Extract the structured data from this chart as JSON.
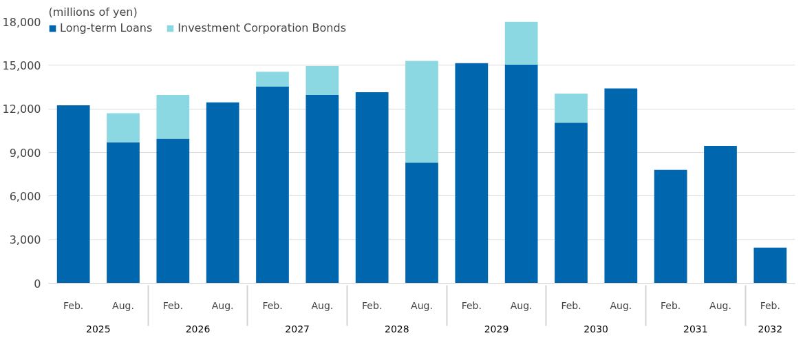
{
  "chart_data": {
    "type": "bar",
    "stacked": true,
    "ylabel": "(millions of yen)",
    "categories": [
      "Feb.",
      "Aug.",
      "Feb.",
      "Aug.",
      "Feb.",
      "Aug.",
      "Feb.",
      "Aug.",
      "Feb.",
      "Aug.",
      "Feb.",
      "Aug.",
      "Feb.",
      "Aug.",
      "Feb."
    ],
    "series": [
      {
        "name": "Long-term Loans",
        "color": "#0066ad",
        "values": [
          12250,
          9700,
          9950,
          12450,
          13550,
          12950,
          13150,
          8300,
          15150,
          15050,
          11050,
          13400,
          7800,
          9450,
          2450
        ]
      },
      {
        "name": "Investment Corporation Bonds",
        "color": "#8cd8e2",
        "values": [
          null,
          2000,
          3000,
          null,
          1000,
          2000,
          null,
          7000,
          null,
          3000,
          2000,
          null,
          null,
          null,
          null
        ]
      }
    ],
    "annotations": [
      "2025",
      "2026",
      "2027",
      "2028",
      "2029",
      "2030",
      "2031",
      "2032"
    ],
    "ylim": [
      0,
      18000
    ],
    "yticks": [
      0,
      {
        "value": 3000,
        "label": "3,000"
      },
      {
        "value": 6000,
        "label": "6,000"
      },
      {
        "value": 9000,
        "label": "9,000"
      },
      {
        "value": 12000,
        "label": "12,000"
      },
      {
        "value": 15000,
        "label": "15,000"
      },
      {
        "value": 18000,
        "label": "18,000"
      }
    ],
    "grid": "y",
    "legend": "top left"
  }
}
